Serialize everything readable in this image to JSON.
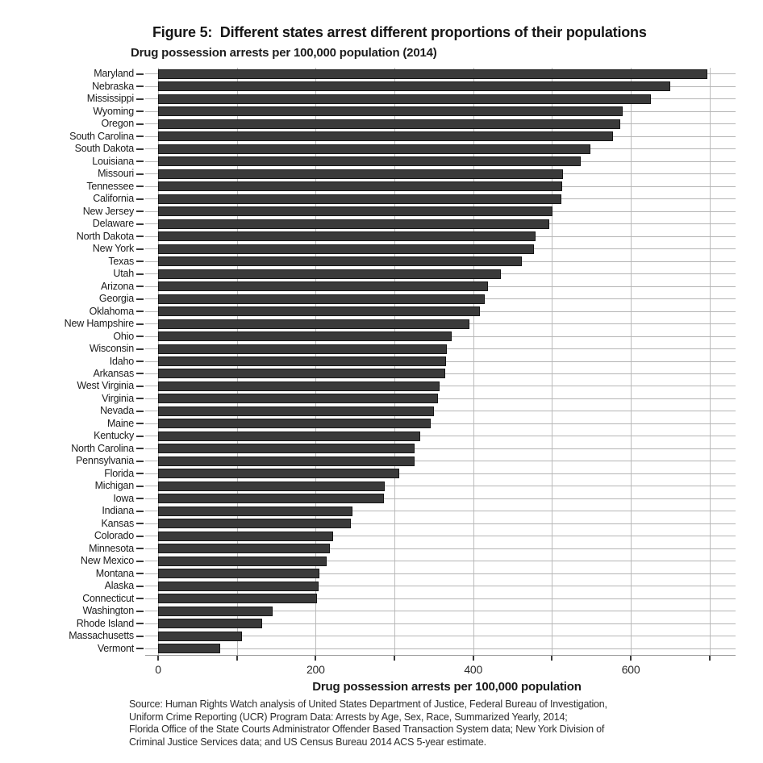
{
  "chart_data": {
    "type": "bar",
    "orientation": "horizontal",
    "title": "Figure 5:  Different states arrest different proportions of their populations",
    "subtitle": "Drug possession arrests per 100,000 population (2014)",
    "xlabel": "Drug possession arrests per 100,000 population",
    "xlim": [
      0,
      733
    ],
    "xticks": [
      0,
      100,
      200,
      300,
      400,
      500,
      600,
      700
    ],
    "xtick_labels": [
      "0",
      "",
      "200",
      "",
      "400",
      "",
      "600",
      ""
    ],
    "grid": true,
    "legend": "none",
    "bar_color": "#3a3a3a",
    "bar_border_color": "#141414",
    "categories": [
      "Maryland",
      "Nebraska",
      "Mississippi",
      "Wyoming",
      "Oregon",
      "South Carolina",
      "South Dakota",
      "Louisiana",
      "Missouri",
      "Tennessee",
      "California",
      "New Jersey",
      "Delaware",
      "North Dakota",
      "New York",
      "Texas",
      "Utah",
      "Arizona",
      "Georgia",
      "Oklahoma",
      "New Hampshire",
      "Ohio",
      "Wisconsin",
      "Idaho",
      "Arkansas",
      "West Virginia",
      "Virginia",
      "Nevada",
      "Maine",
      "Kentucky",
      "North Carolina",
      "Pennsylvania",
      "Florida",
      "Michigan",
      "Iowa",
      "Indiana",
      "Kansas",
      "Colorado",
      "Minnesota",
      "New Mexico",
      "Montana",
      "Alaska",
      "Connecticut",
      "Washington",
      "Rhode Island",
      "Massachusetts",
      "Vermont"
    ],
    "values": [
      695,
      648,
      623,
      588,
      585,
      575,
      547,
      534,
      512,
      511,
      510,
      499,
      494,
      477,
      475,
      460,
      433,
      417,
      413,
      406,
      393,
      371,
      364,
      363,
      362,
      355,
      353,
      348,
      344,
      331,
      324,
      323,
      304,
      286,
      285,
      245,
      243,
      220,
      216,
      212,
      203,
      202,
      200,
      143,
      130,
      104,
      77
    ],
    "source_lines": [
      "Source: Human Rights Watch analysis of United States Department of Justice, Federal Bureau of Investigation,",
      "Uniform Crime Reporting (UCR) Program Data: Arrests by Age, Sex, Race, Summarized Yearly, 2014;",
      "Florida Office of the State Courts Administrator Offender Based Transaction System data; New York Division of",
      "Criminal Justice Services data; and US Census Bureau 2014 ACS 5-year estimate."
    ]
  }
}
